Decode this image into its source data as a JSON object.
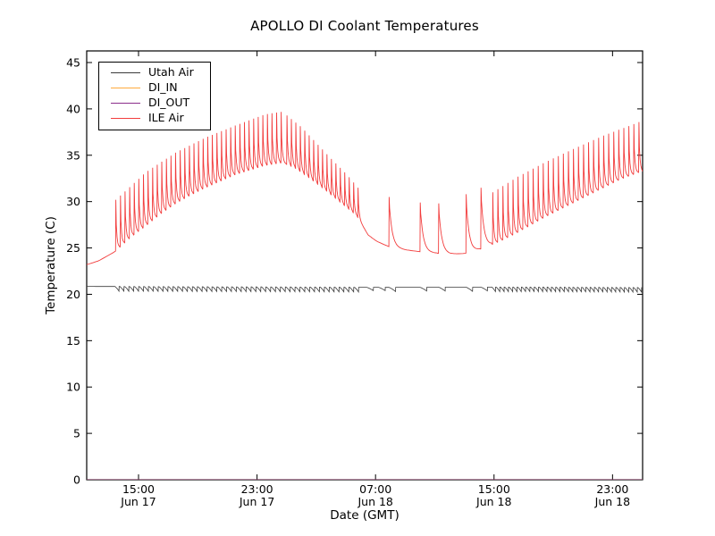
{
  "chart_data": {
    "type": "line",
    "title": "APOLLO DI Coolant Temperatures",
    "xlabel": "Date (GMT)",
    "ylabel": "Temperature (C)",
    "ylim": [
      0,
      45
    ],
    "yticks": [
      0,
      5,
      10,
      15,
      20,
      25,
      30,
      35,
      40,
      45
    ],
    "grid": false,
    "legend_position": "upper left",
    "x_axis": {
      "start": "Jun 17 11:30",
      "end": "Jun 19 01:00",
      "total_hours": 37.53,
      "ticks": [
        {
          "t": 3.5,
          "time": "15:00",
          "date": "Jun 17"
        },
        {
          "t": 11.5,
          "time": "23:00",
          "date": "Jun 17"
        },
        {
          "t": 19.5,
          "time": "07:00",
          "date": "Jun 18"
        },
        {
          "t": 27.5,
          "time": "15:00",
          "date": "Jun 18"
        },
        {
          "t": 35.5,
          "time": "23:00",
          "date": "Jun 18"
        }
      ]
    },
    "series": [
      {
        "label": "Utah Air",
        "color": "#3a3a3a",
        "baseline": [
          [
            0,
            20.85
          ],
          [
            10,
            20.8
          ],
          [
            20,
            20.75
          ],
          [
            30,
            20.78
          ],
          [
            37.53,
            20.72
          ]
        ],
        "dip_trains": [
          {
            "t0": 1.9,
            "t1": 18.3,
            "interval": 0.33,
            "depth": 0.5
          },
          {
            "t0": 27.35,
            "t1": 37.45,
            "interval": 0.29,
            "depth": 0.48
          }
        ],
        "dips": [
          [
            18.9,
            0.35
          ],
          [
            19.7,
            0.35
          ],
          [
            20.4,
            0.45
          ],
          [
            22.5,
            0.4
          ],
          [
            23.75,
            0.4
          ],
          [
            25.6,
            0.45
          ],
          [
            26.6,
            0.4
          ]
        ]
      },
      {
        "label": "DI_IN",
        "color": "#ffaa3d",
        "baseline": [
          [
            0,
            0
          ],
          [
            37.53,
            0
          ]
        ]
      },
      {
        "label": "DI_OUT",
        "color": "#8b2e8b",
        "baseline": [
          [
            0,
            0
          ],
          [
            37.53,
            0
          ]
        ]
      },
      {
        "label": "ILE Air",
        "color": "#f23c3c",
        "baseline": [
          [
            0,
            23.2
          ],
          [
            0.8,
            23.6
          ],
          [
            1.9,
            24.6
          ],
          [
            3,
            26.2
          ],
          [
            4,
            27.4
          ],
          [
            5,
            28.7
          ],
          [
            6,
            29.8
          ],
          [
            7,
            30.7
          ],
          [
            8,
            31.5
          ],
          [
            9,
            32.2
          ],
          [
            10,
            32.9
          ],
          [
            11,
            33.4
          ],
          [
            12,
            33.9
          ],
          [
            13.2,
            34.2
          ],
          [
            14,
            33.7
          ],
          [
            15,
            32.6
          ],
          [
            16,
            31.4
          ],
          [
            17,
            30.1
          ],
          [
            18,
            28.8
          ],
          [
            18.3,
            28.3
          ],
          [
            19,
            26.4
          ],
          [
            19.6,
            25.7
          ],
          [
            20.4,
            25.15
          ],
          [
            21.5,
            24.8
          ],
          [
            22.5,
            24.6
          ],
          [
            23.5,
            24.45
          ],
          [
            24.5,
            24.35
          ],
          [
            25.5,
            24.4
          ],
          [
            26,
            24.6
          ],
          [
            26.8,
            25.0
          ],
          [
            27.4,
            25.4
          ],
          [
            28,
            25.8
          ],
          [
            29,
            26.6
          ],
          [
            30,
            27.5
          ],
          [
            31,
            28.4
          ],
          [
            32,
            29.2
          ],
          [
            33,
            30.0
          ],
          [
            34,
            30.8
          ],
          [
            35,
            31.6
          ],
          [
            36,
            32.4
          ],
          [
            37,
            33.0
          ],
          [
            37.53,
            33.3
          ]
        ],
        "spike_trains": [
          {
            "t0": 1.95,
            "t1": 13.2,
            "interval": 0.31,
            "decay": 14,
            "tops": [
              [
                1.95,
                30.2
              ],
              [
                4,
                33.2
              ],
              [
                6,
                35.3
              ],
              [
                8,
                36.9
              ],
              [
                10,
                38.2
              ],
              [
                12,
                39.4
              ],
              [
                13.2,
                39.7
              ]
            ]
          },
          {
            "t0": 13.5,
            "t1": 18.3,
            "interval": 0.3,
            "decay": 14,
            "tops": [
              [
                13.5,
                39.3
              ],
              [
                14.5,
                38.0
              ],
              [
                15.5,
                36.3
              ],
              [
                16.5,
                34.6
              ],
              [
                17.5,
                33.0
              ],
              [
                18.3,
                31.5
              ]
            ]
          },
          {
            "t0": 27.4,
            "t1": 37.45,
            "interval": 0.34,
            "decay": 14,
            "tops": [
              [
                27.4,
                31.0
              ],
              [
                29,
                32.6
              ],
              [
                31,
                34.3
              ],
              [
                33,
                35.8
              ],
              [
                35,
                37.2
              ],
              [
                36.5,
                38.1
              ],
              [
                37.45,
                38.7
              ]
            ]
          }
        ],
        "spikes": [
          [
            20.4,
            30.5
          ],
          [
            22.5,
            29.9
          ],
          [
            23.75,
            29.8
          ],
          [
            25.6,
            30.8
          ],
          [
            26.6,
            31.5
          ]
        ],
        "sparse_decay": 5
      }
    ]
  }
}
